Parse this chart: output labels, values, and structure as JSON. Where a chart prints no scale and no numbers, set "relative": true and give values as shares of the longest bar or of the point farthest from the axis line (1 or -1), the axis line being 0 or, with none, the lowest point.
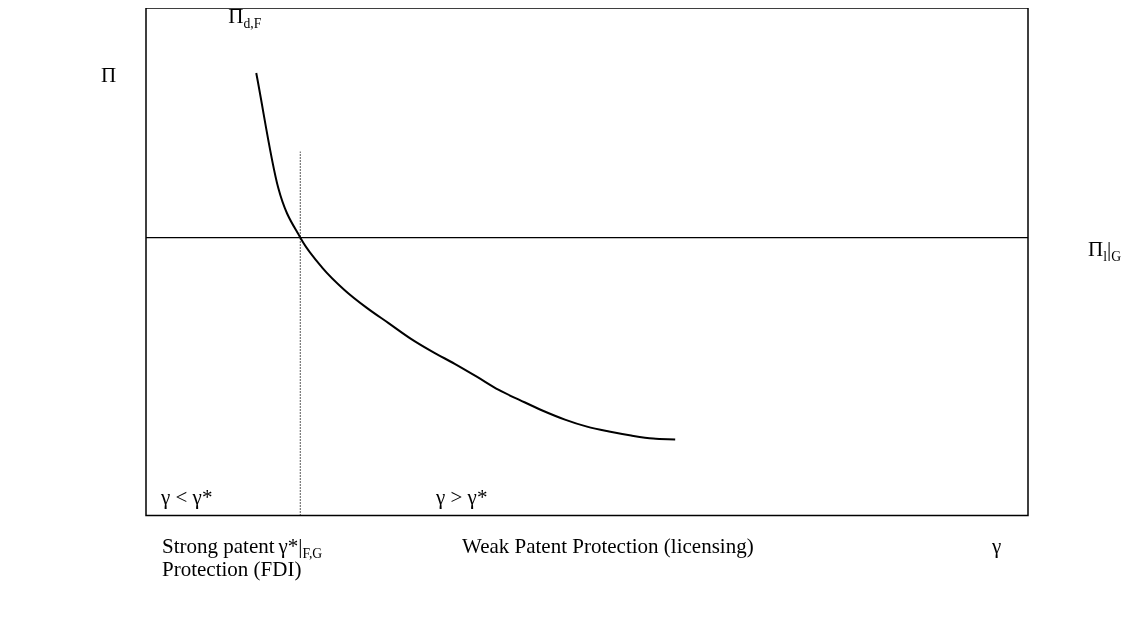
{
  "chart_data": {
    "type": "line",
    "relative": true,
    "ylabel": "Π",
    "xlabel": "γ",
    "categories": [
      null,
      null,
      null,
      null,
      null,
      null,
      null,
      null,
      null,
      null,
      null,
      null,
      null,
      null,
      null,
      null,
      null,
      null,
      null,
      null,
      null,
      null,
      null,
      null,
      null,
      null,
      null,
      null,
      null,
      null,
      null,
      null,
      null,
      null,
      null,
      null,
      null,
      null,
      null,
      null,
      null
    ],
    "series": [
      {
        "name": "Π$_{d,F}$",
        "color": "#000000",
        "values": [
          null,
          null,
          null,
          null,
          null,
          1,
          0.74,
          0.628,
          0.56,
          0.51,
          0.47,
          0.435,
          0.4,
          0.37,
          0.343,
          0.314,
          0.284,
          0.26,
          0.237,
          0.217,
          0.201,
          0.19,
          0.181,
          0.174,
          0.172,
          null,
          null,
          null,
          null,
          null,
          null,
          null,
          null,
          null,
          null,
          null,
          null,
          null,
          null,
          null,
          null
        ]
      }
    ],
    "ref_lines": [
      {
        "axis": "y",
        "value": 0.628,
        "label": "Π$_{l}$|$_{G}$",
        "color": "#000000",
        "line_style": "solid"
      }
    ],
    "annotations": [
      "γ < γ*",
      "γ > γ*",
      "Strong patent\nProtection (FDI)",
      "Weak Patent Protection (licensing)",
      "γ*|$_{F,G}$"
    ],
    "grid": false,
    "legend": false,
    "marker": "none",
    "line_style": "solid"
  }
}
